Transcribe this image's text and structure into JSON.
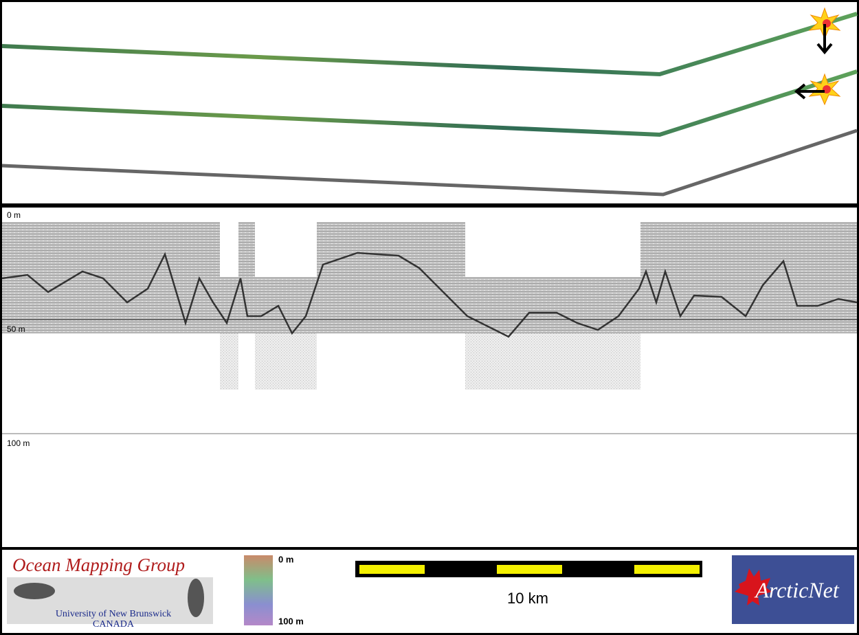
{
  "profile": {
    "depth_labels": [
      "0 m",
      "50 m",
      "100 m"
    ]
  },
  "footer": {
    "logo": {
      "title": "Ocean Mapping Group",
      "line1": "University of New Brunswick",
      "line2": "CANADA"
    },
    "colorbar": {
      "top": "0 m",
      "bottom": "100 m"
    },
    "scalebar": {
      "label": "10 km"
    },
    "partner": {
      "name": "ArcticNet"
    }
  }
}
